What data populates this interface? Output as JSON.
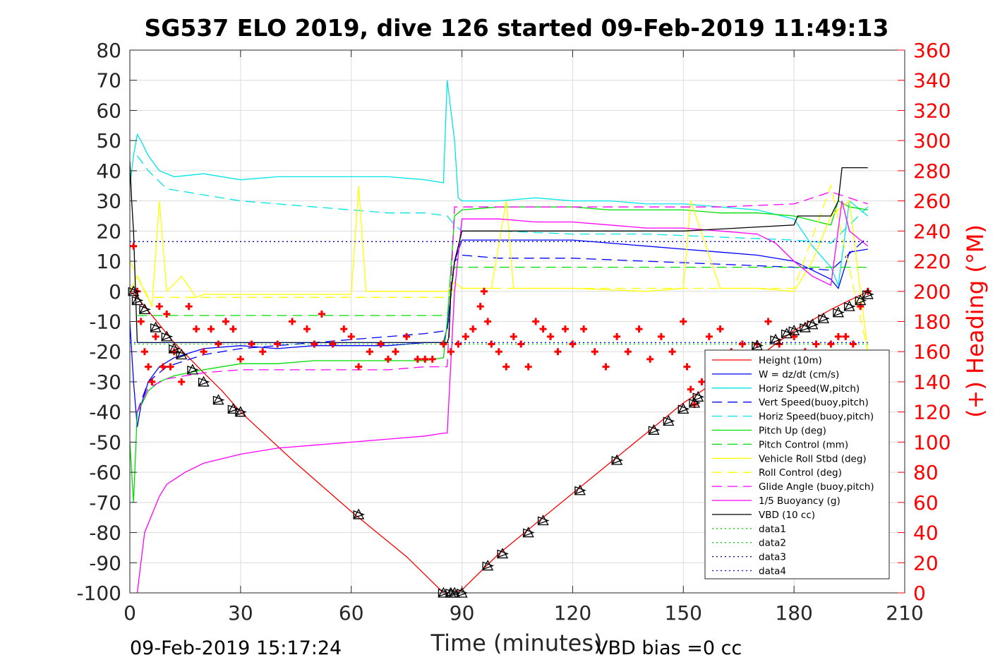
{
  "chart_data": {
    "type": "line",
    "title": "SG537 ELO 2019, dive 126 started 09-Feb-2019 11:49:13",
    "xlabel": "Time (minutes)",
    "ylabel_right": "(+) Heading (°M)",
    "footer_left": "09-Feb-2019 15:17:24",
    "footer_right": "VBD bias =0 cc",
    "xlim": [
      0,
      210
    ],
    "ylim": [
      -100,
      80
    ],
    "ylim_right": [
      0,
      360
    ],
    "x_ticks": [
      "0",
      "30",
      "60",
      "90",
      "120",
      "150",
      "180",
      "210"
    ],
    "y_ticks": [
      "80",
      "70",
      "60",
      "50",
      "40",
      "30",
      "20",
      "10",
      "0",
      "-10",
      "-20",
      "-30",
      "-40",
      "-50",
      "-60",
      "-70",
      "-80",
      "-90",
      "-100"
    ],
    "y_ticks_right": [
      "360",
      "340",
      "320",
      "300",
      "280",
      "260",
      "240",
      "220",
      "200",
      "180",
      "160",
      "140",
      "120",
      "100",
      "80",
      "60",
      "40",
      "20",
      "0"
    ],
    "grid": true,
    "legend_position": "bottom-right",
    "legend": [
      {
        "label": "Height (10m)",
        "color": "#ff0000",
        "dash": "solid"
      },
      {
        "label": "W = dz/dt (cm/s)",
        "color": "#0000ff",
        "dash": "solid"
      },
      {
        "label": "Horiz Speed(W,pitch)",
        "color": "#00e5e5",
        "dash": "solid"
      },
      {
        "label": "Vert Speed(buoy,pitch)",
        "color": "#0000ff",
        "dash": "dashed"
      },
      {
        "label": "Horiz Speed(buoy,pitch)",
        "color": "#00e5e5",
        "dash": "dashed"
      },
      {
        "label": "Pitch Up (deg)",
        "color": "#00dd00",
        "dash": "solid"
      },
      {
        "label": "Pitch Control (mm)",
        "color": "#00dd00",
        "dash": "dashed"
      },
      {
        "label": "Vehicle Roll Stbd (deg)",
        "color": "#ffff00",
        "dash": "solid"
      },
      {
        "label": "Roll Control (deg)",
        "color": "#ffff00",
        "dash": "dashed"
      },
      {
        "label": "Glide Angle (buoy,pitch)",
        "color": "#ff00ff",
        "dash": "dashed"
      },
      {
        "label": "1/5 Buoyancy (g)",
        "color": "#ff00ff",
        "dash": "solid"
      },
      {
        "label": "VBD (10 cc)",
        "color": "#000000",
        "dash": "solid"
      },
      {
        "label": "data1",
        "color": "#00dd00",
        "dash": "dotted"
      },
      {
        "label": "data2",
        "color": "#00dd00",
        "dash": "dotted"
      },
      {
        "label": "data3",
        "color": "#0000aa",
        "dash": "dotted"
      },
      {
        "label": "data4",
        "color": "#0000ff",
        "dash": "dotted"
      }
    ],
    "series": [
      {
        "name": "Height (10m)",
        "color": "#ff0000",
        "dash": "solid",
        "x": [
          0,
          2,
          4,
          8,
          12,
          16,
          20,
          25,
          30,
          45,
          60,
          75,
          85,
          88,
          90,
          95,
          100,
          110,
          120,
          130,
          140,
          150,
          160,
          170,
          180,
          190,
          195,
          200
        ],
        "y": [
          0,
          -2,
          -5,
          -11,
          -17,
          -22,
          -27,
          -33,
          -40,
          -57,
          -73,
          -88,
          -100,
          -100,
          -99,
          -93,
          -87,
          -77,
          -67,
          -57,
          -47,
          -37,
          -29,
          -22,
          -13,
          -6,
          -3,
          0
        ]
      },
      {
        "name": "W = dz/dt (cm/s)",
        "color": "#0000ff",
        "dash": "solid",
        "x": [
          0,
          1,
          2,
          3,
          5,
          8,
          12,
          20,
          30,
          40,
          50,
          60,
          70,
          80,
          85,
          86,
          88,
          90,
          95,
          100,
          110,
          120,
          130,
          140,
          150,
          160,
          170,
          180,
          185,
          190,
          192,
          195,
          200
        ],
        "y": [
          -10,
          -30,
          -45,
          -38,
          -30,
          -25,
          -22,
          -19,
          -18,
          -19,
          -18,
          -18,
          -18,
          -17,
          -17,
          -12,
          10,
          17,
          17,
          17,
          17,
          17,
          16,
          15,
          14,
          13,
          12,
          10,
          7,
          4,
          1,
          13,
          14
        ]
      },
      {
        "name": "Horiz Speed(W,pitch)",
        "color": "#00e5e5",
        "dash": "solid",
        "x": [
          0,
          1,
          2,
          3,
          5,
          8,
          12,
          20,
          30,
          40,
          50,
          60,
          70,
          80,
          85,
          86,
          87,
          88,
          89,
          90,
          95,
          100,
          110,
          120,
          130,
          140,
          150,
          160,
          170,
          180,
          185,
          190,
          192,
          195,
          200
        ],
        "y": [
          35,
          45,
          52,
          50,
          45,
          40,
          38,
          39,
          37,
          38,
          38,
          38,
          38,
          37,
          36,
          70,
          60,
          50,
          31,
          30,
          30,
          30,
          31,
          30,
          30,
          29,
          29,
          28,
          27,
          24,
          15,
          8,
          2,
          30,
          25
        ]
      },
      {
        "name": "Vert Speed(buoy,pitch)",
        "color": "#0000ff",
        "dash": "dashed",
        "x": [
          2,
          5,
          10,
          20,
          30,
          40,
          50,
          60,
          70,
          80,
          86,
          88,
          90,
          100,
          120,
          140,
          160,
          180,
          190,
          200
        ],
        "y": [
          -40,
          -30,
          -25,
          -21,
          -19,
          -18,
          -17,
          -16,
          -15,
          -14,
          -13,
          10,
          12,
          11,
          11,
          10,
          9,
          8,
          7,
          18
        ]
      },
      {
        "name": "Horiz Speed(buoy,pitch)",
        "color": "#00e5e5",
        "dash": "dashed",
        "x": [
          2,
          5,
          10,
          20,
          30,
          40,
          50,
          60,
          70,
          80,
          86,
          88,
          90,
          100,
          120,
          140,
          160,
          180,
          190,
          200
        ],
        "y": [
          45,
          40,
          34,
          32,
          30,
          29,
          28,
          27,
          26,
          26,
          25,
          22,
          20,
          20,
          19,
          19,
          18,
          17,
          16,
          28
        ]
      },
      {
        "name": "Pitch Up (deg)",
        "color": "#00dd00",
        "dash": "solid",
        "x": [
          0,
          1,
          2,
          3,
          5,
          8,
          12,
          20,
          30,
          40,
          50,
          60,
          70,
          80,
          85,
          86,
          88,
          90,
          100,
          110,
          120,
          130,
          140,
          150,
          160,
          170,
          180,
          190,
          192,
          195,
          200
        ],
        "y": [
          -50,
          -70,
          -40,
          -38,
          -33,
          -30,
          -28,
          -26,
          -24,
          -24,
          -23,
          -23,
          -23,
          -23,
          -22,
          -10,
          25,
          27,
          28,
          28,
          28,
          27,
          27,
          27,
          26,
          26,
          25,
          22,
          30,
          28,
          27
        ]
      },
      {
        "name": "Pitch Control (mm)",
        "color": "#00dd00",
        "dash": "dashed",
        "x": [
          2,
          10,
          20,
          86,
          88,
          140,
          180,
          200
        ],
        "y": [
          -8,
          -8,
          -8,
          -8,
          8,
          8,
          8,
          8
        ]
      },
      {
        "name": "Vehicle Roll Stbd (deg)",
        "color": "#ffff00",
        "dash": "solid",
        "x": [
          0,
          2,
          4,
          6,
          8,
          10,
          14,
          18,
          20,
          30,
          40,
          60,
          62,
          64,
          80,
          86,
          88,
          90,
          98,
          102,
          104,
          120,
          140,
          150,
          152,
          160,
          170,
          180,
          185,
          190,
          195,
          200
        ],
        "y": [
          0,
          5,
          0,
          -5,
          30,
          0,
          5,
          -2,
          -1,
          -1,
          -1,
          -1,
          35,
          0,
          0,
          0,
          3,
          1,
          1,
          30,
          1,
          1,
          0,
          1,
          30,
          1,
          1,
          0,
          10,
          25,
          30,
          -20
        ]
      },
      {
        "name": "Roll Control (deg)",
        "color": "#ffff00",
        "dash": "dashed",
        "x": [
          0,
          5,
          10,
          15,
          20,
          30,
          60,
          86,
          88,
          100,
          140,
          180,
          190,
          200
        ],
        "y": [
          10,
          -2,
          -2,
          -2,
          -2,
          -2,
          -2,
          -2,
          1,
          1,
          1,
          1,
          35,
          -20
        ]
      },
      {
        "name": "Glide Angle (buoy,pitch)",
        "color": "#ff00ff",
        "dash": "dashed",
        "x": [
          2,
          5,
          10,
          20,
          30,
          40,
          50,
          60,
          70,
          80,
          86,
          88,
          90,
          100,
          120,
          140,
          160,
          180,
          190,
          200
        ],
        "y": [
          -40,
          -32,
          -29,
          -27,
          -26,
          -26,
          -26,
          -26,
          -26,
          -25,
          -25,
          28,
          28,
          28,
          28,
          28,
          28,
          29,
          33,
          29
        ]
      },
      {
        "name": "1/5 Buoyancy (g)",
        "color": "#ff00ff",
        "dash": "solid",
        "x": [
          2,
          3,
          4,
          6,
          8,
          10,
          15,
          20,
          30,
          40,
          50,
          60,
          70,
          80,
          85,
          86,
          88,
          90,
          100,
          110,
          120,
          130,
          140,
          150,
          160,
          170,
          175,
          180,
          185,
          190,
          193,
          195,
          200
        ],
        "y": [
          -100,
          -90,
          -80,
          -74,
          -68,
          -64,
          -60,
          -57,
          -54,
          -52,
          -51,
          -50,
          -49,
          -48,
          -47,
          -47,
          0,
          24,
          24,
          23,
          23,
          22,
          21,
          21,
          20,
          19,
          16,
          10,
          5,
          2,
          30,
          20,
          15
        ]
      },
      {
        "name": "VBD (10 cc)",
        "color": "#000000",
        "dash": "solid",
        "x": [
          0,
          0.5,
          1,
          2,
          86,
          86.5,
          87,
          88,
          90,
          90,
          100,
          120,
          150,
          180,
          181,
          190,
          192,
          193,
          200
        ],
        "y": [
          43,
          30,
          20,
          -17,
          -17,
          -15,
          0,
          10,
          20,
          20,
          20,
          20,
          20,
          22,
          25,
          25,
          30,
          41,
          41
        ]
      },
      {
        "name": "data1",
        "color": "#00dd00",
        "dash": "dotted",
        "x": [
          0,
          200
        ],
        "y": [
          -17,
          -17
        ]
      },
      {
        "name": "data2",
        "color": "#00dd00",
        "dash": "dotted",
        "x": [
          0,
          200
        ],
        "y": [
          -17.5,
          -17.5
        ]
      },
      {
        "name": "data3",
        "color": "#0000aa",
        "dash": "dotted",
        "x": [
          0,
          200
        ],
        "y": [
          16.5,
          16.5
        ]
      },
      {
        "name": "data4",
        "color": "#0000ff",
        "dash": "dotted",
        "x": [
          0,
          200
        ],
        "y": [
          -17,
          -17
        ]
      }
    ],
    "heading_series": {
      "name": "(+) Heading",
      "axis": "right",
      "color": "#ff0000",
      "marker": "+",
      "x": [
        1,
        2,
        3,
        4,
        5,
        6,
        7,
        8,
        9,
        10,
        11,
        12,
        14,
        16,
        18,
        20,
        22,
        24,
        26,
        28,
        30,
        33,
        36,
        40,
        44,
        48,
        50,
        52,
        55,
        58,
        60,
        62,
        65,
        68,
        70,
        72,
        75,
        78,
        80,
        82,
        85,
        87,
        89,
        91,
        93,
        95,
        96,
        97,
        98,
        100,
        102,
        104,
        106,
        108,
        110,
        112,
        114,
        116,
        118,
        120,
        123,
        126,
        129,
        132,
        135,
        138,
        141,
        144,
        147,
        150,
        151,
        152,
        153,
        155,
        157,
        160,
        163,
        166,
        170,
        173,
        176,
        180,
        183,
        186,
        188,
        190,
        192,
        194,
        196,
        198,
        200
      ],
      "y": [
        230,
        200,
        180,
        160,
        150,
        140,
        170,
        190,
        150,
        185,
        150,
        160,
        140,
        190,
        175,
        160,
        175,
        165,
        180,
        175,
        155,
        165,
        160,
        165,
        180,
        175,
        165,
        185,
        165,
        175,
        170,
        150,
        160,
        165,
        155,
        160,
        170,
        155,
        155,
        155,
        165,
        160,
        165,
        170,
        175,
        190,
        200,
        180,
        165,
        160,
        150,
        170,
        165,
        150,
        180,
        175,
        170,
        160,
        175,
        165,
        175,
        160,
        150,
        170,
        160,
        175,
        155,
        170,
        160,
        180,
        150,
        135,
        125,
        140,
        170,
        175,
        160,
        165,
        165,
        180,
        165,
        170,
        160,
        165,
        150,
        165,
        170,
        170,
        165,
        190,
        200
      ]
    },
    "triangle_markers": {
      "color": "#000000",
      "x": [
        1,
        2,
        4,
        7,
        10,
        12,
        14,
        17,
        20,
        24,
        28,
        30,
        62,
        85,
        87,
        88,
        90,
        97,
        101,
        108,
        112,
        122,
        132,
        142,
        146,
        150,
        153,
        154,
        170,
        175,
        178,
        180,
        183,
        185,
        188,
        192,
        195,
        198,
        200
      ],
      "y": [
        0,
        -3,
        -6,
        -12,
        -15,
        -19,
        -21,
        -26,
        -30,
        -36,
        -39,
        -40,
        -74,
        -100,
        -100,
        -100,
        -100,
        -91,
        -87,
        -80,
        -76,
        -66,
        -56,
        -46,
        -43,
        -39,
        -37,
        -35,
        -18,
        -16,
        -14,
        -13,
        -12,
        -11,
        -9,
        -7,
        -5,
        -3,
        -1
      ]
    }
  }
}
